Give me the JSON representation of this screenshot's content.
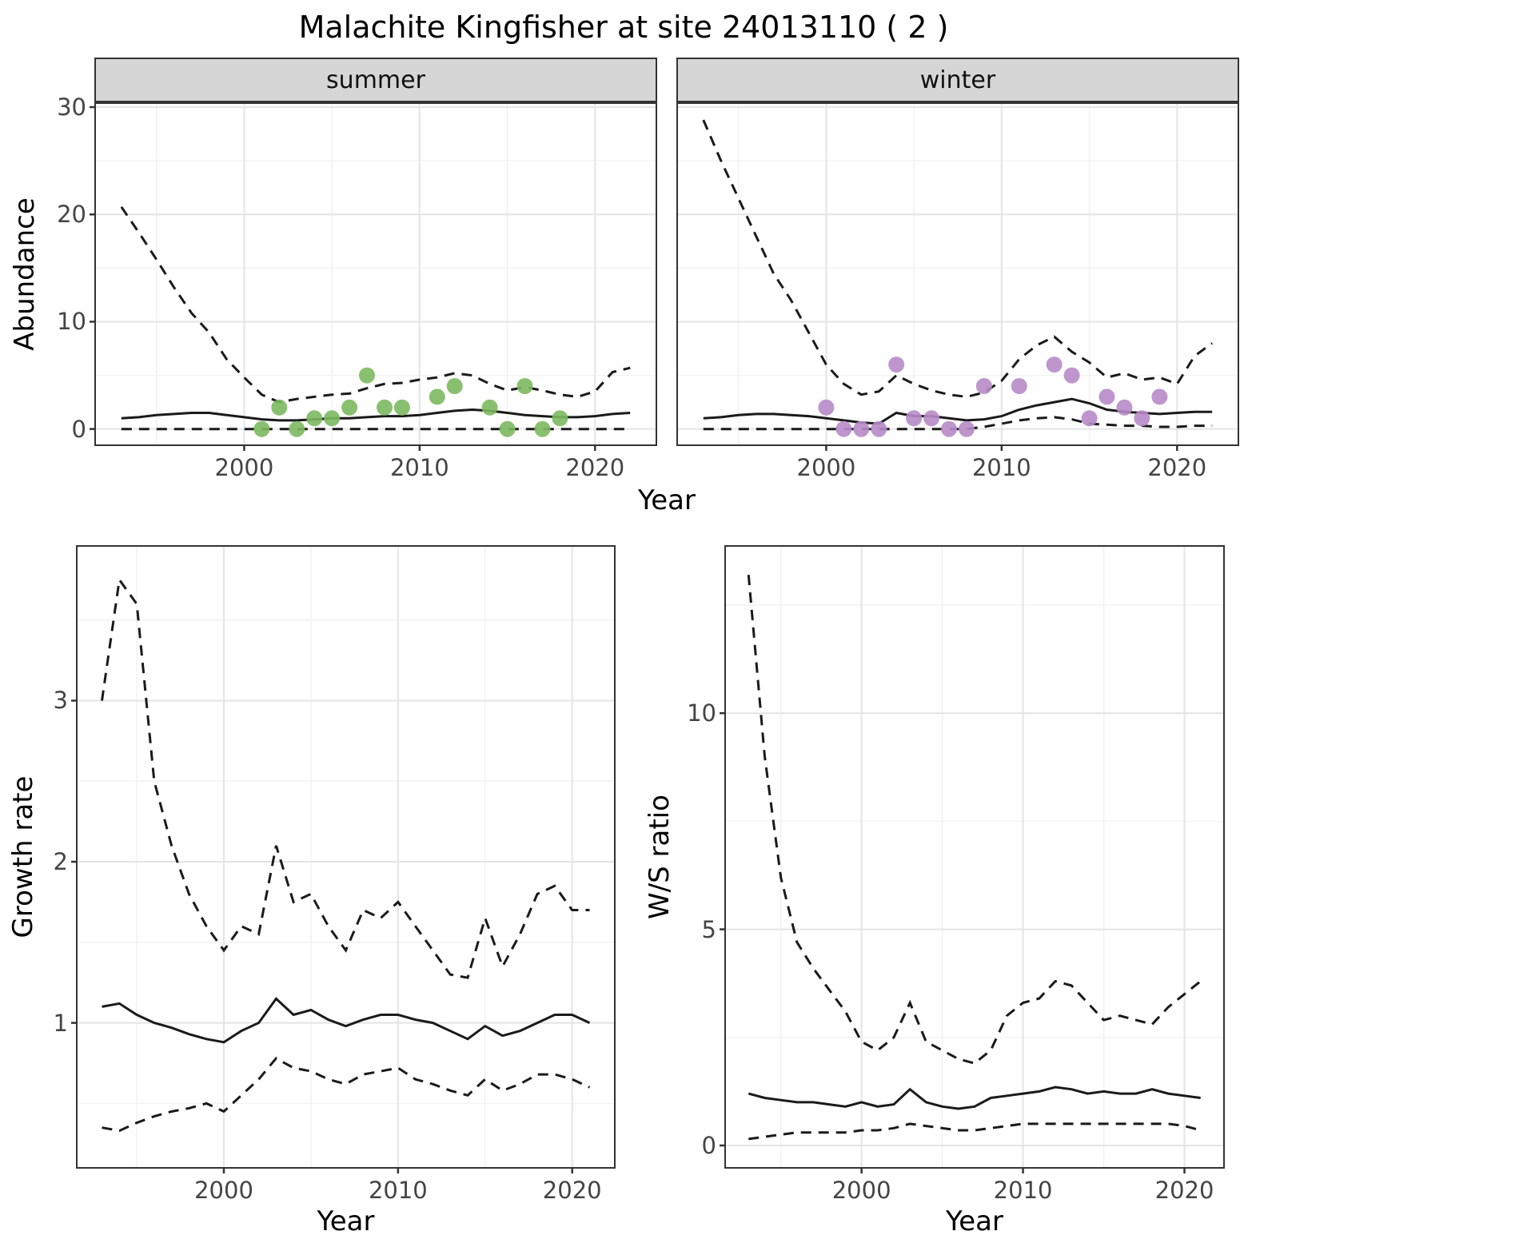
{
  "title": "Malachite Kingfisher at site 24013110 ( 2 )",
  "axes": {
    "year": "Year",
    "abundance": "Abundance",
    "growth_rate": "Growth rate",
    "ws_ratio": "W/S ratio"
  },
  "facets": [
    "summer",
    "winter"
  ],
  "colors": {
    "line": "#1a1a1a",
    "summer_points": "#7cb95f",
    "winter_points": "#b78bc8",
    "strip_bg": "#d6d6d6",
    "grid_major": "#e4e4e4",
    "grid_minor": "#f2f2f2",
    "tick_text": "#444444"
  },
  "chart_data": [
    {
      "id": "abundance-summer",
      "type": "line",
      "facet": "summer",
      "title": "",
      "xlabel": "Year",
      "ylabel": "Abundance",
      "xlim": [
        1991.55,
        2023.45
      ],
      "ylim": [
        -1.44,
        30.3
      ],
      "xticks": [
        2000,
        2010,
        2020
      ],
      "yticks": [
        0,
        10,
        20,
        30
      ],
      "xminor": [
        1995,
        2005,
        2015
      ],
      "yminor": [
        5,
        15,
        25
      ],
      "grid": true,
      "show_yticklabels": true,
      "x": [
        1993,
        1994,
        1995,
        1996,
        1997,
        1998,
        1999,
        2000,
        2001,
        2002,
        2003,
        2004,
        2005,
        2006,
        2007,
        2008,
        2009,
        2010,
        2011,
        2012,
        2013,
        2014,
        2015,
        2016,
        2017,
        2018,
        2019,
        2020,
        2021,
        2022
      ],
      "series": [
        {
          "name": "upper-ci",
          "style": "dashed",
          "values": [
            20.7,
            18.3,
            15.8,
            13.2,
            10.8,
            9.0,
            6.5,
            4.8,
            3.2,
            2.5,
            2.8,
            3.0,
            3.2,
            3.3,
            3.8,
            4.2,
            4.3,
            4.6,
            4.8,
            5.2,
            5.0,
            4.2,
            3.6,
            3.9,
            3.6,
            3.2,
            3.0,
            3.5,
            5.3,
            5.7
          ]
        },
        {
          "name": "mean",
          "style": "solid",
          "values": [
            1.0,
            1.1,
            1.3,
            1.4,
            1.5,
            1.5,
            1.3,
            1.1,
            0.9,
            0.8,
            0.8,
            0.9,
            1.0,
            1.0,
            1.1,
            1.2,
            1.2,
            1.3,
            1.5,
            1.7,
            1.8,
            1.7,
            1.5,
            1.3,
            1.2,
            1.1,
            1.1,
            1.2,
            1.4,
            1.5
          ]
        },
        {
          "name": "lower-ci",
          "style": "dashed",
          "values": [
            0,
            0,
            0,
            0,
            0,
            0,
            0,
            0,
            0,
            0,
            0,
            0,
            0,
            0,
            0,
            0,
            0,
            0,
            0,
            0,
            0,
            0,
            0,
            0,
            0,
            0,
            0,
            0,
            0,
            0
          ]
        }
      ],
      "points": {
        "name": "observed-counts",
        "color": "#7cb95f",
        "x": [
          2001,
          2002,
          2003,
          2004,
          2005,
          2006,
          2007,
          2008,
          2009,
          2011,
          2012,
          2014,
          2015,
          2016,
          2017,
          2018
        ],
        "y": [
          0,
          2,
          0,
          1,
          1,
          2,
          5,
          2,
          2,
          3,
          4,
          2,
          0,
          4,
          0,
          1
        ]
      }
    },
    {
      "id": "abundance-winter",
      "type": "line",
      "facet": "winter",
      "title": "",
      "xlabel": "Year",
      "ylabel": "Abundance",
      "xlim": [
        1991.55,
        2023.45
      ],
      "ylim": [
        -1.44,
        30.3
      ],
      "xticks": [
        2000,
        2010,
        2020
      ],
      "yticks": [
        0,
        10,
        20,
        30
      ],
      "xminor": [
        1995,
        2005,
        2015
      ],
      "yminor": [
        5,
        15,
        25
      ],
      "grid": true,
      "show_yticklabels": false,
      "x": [
        1993,
        1994,
        1995,
        1996,
        1997,
        1998,
        1999,
        2000,
        2001,
        2002,
        2003,
        2004,
        2005,
        2006,
        2007,
        2008,
        2009,
        2010,
        2011,
        2012,
        2013,
        2014,
        2015,
        2016,
        2017,
        2018,
        2019,
        2020,
        2021,
        2022
      ],
      "series": [
        {
          "name": "upper-ci",
          "style": "dashed",
          "values": [
            28.8,
            25.0,
            21.5,
            18.0,
            14.5,
            12.0,
            9.0,
            6.0,
            4.2,
            3.2,
            3.5,
            5.0,
            4.2,
            3.6,
            3.2,
            3.0,
            3.4,
            4.5,
            6.5,
            7.8,
            8.6,
            7.2,
            6.2,
            4.8,
            5.2,
            4.6,
            4.8,
            4.2,
            6.8,
            8.0
          ]
        },
        {
          "name": "mean",
          "style": "solid",
          "values": [
            1.0,
            1.1,
            1.3,
            1.4,
            1.4,
            1.3,
            1.2,
            1.0,
            0.8,
            0.6,
            0.5,
            1.5,
            1.2,
            1.2,
            1.0,
            0.8,
            0.9,
            1.2,
            1.8,
            2.2,
            2.5,
            2.8,
            2.4,
            1.8,
            1.6,
            1.5,
            1.4,
            1.5,
            1.6,
            1.6
          ]
        },
        {
          "name": "lower-ci",
          "style": "dashed",
          "values": [
            0,
            0,
            0,
            0,
            0,
            0,
            0,
            0,
            0,
            0,
            0,
            0,
            0,
            0,
            0,
            0,
            0.2,
            0.5,
            0.8,
            1.0,
            1.1,
            0.9,
            0.5,
            0.4,
            0.3,
            0.3,
            0.2,
            0.2,
            0.3,
            0.3
          ]
        }
      ],
      "points": {
        "name": "observed-counts",
        "color": "#b78bc8",
        "x": [
          2000,
          2001,
          2002,
          2003,
          2004,
          2005,
          2006,
          2007,
          2008,
          2009,
          2011,
          2013,
          2014,
          2015,
          2016,
          2017,
          2018,
          2019
        ],
        "y": [
          2,
          0,
          0,
          0,
          6,
          1,
          1,
          0,
          0,
          4,
          4,
          6,
          5,
          1,
          3,
          2,
          1,
          3
        ]
      }
    },
    {
      "id": "growth-rate",
      "type": "line",
      "facet": "",
      "title": "",
      "xlabel": "Year",
      "ylabel": "Growth rate",
      "xlim": [
        1991.6,
        2022.4
      ],
      "ylim": [
        0.105,
        3.955
      ],
      "xticks": [
        2000,
        2010,
        2020
      ],
      "yticks": [
        1,
        2,
        3
      ],
      "xminor": [
        1995,
        2005,
        2015
      ],
      "yminor": [
        0.5,
        1.5,
        2.5,
        3.5
      ],
      "grid": true,
      "show_yticklabels": true,
      "x": [
        1993,
        1994,
        1995,
        1996,
        1997,
        1998,
        1999,
        2000,
        2001,
        2002,
        2003,
        2004,
        2005,
        2006,
        2007,
        2008,
        2009,
        2010,
        2011,
        2012,
        2013,
        2014,
        2015,
        2016,
        2017,
        2018,
        2019,
        2020,
        2021
      ],
      "series": [
        {
          "name": "upper-ci",
          "style": "dashed",
          "values": [
            3.0,
            3.75,
            3.6,
            2.5,
            2.1,
            1.8,
            1.6,
            1.45,
            1.6,
            1.55,
            2.1,
            1.75,
            1.8,
            1.6,
            1.45,
            1.7,
            1.65,
            1.75,
            1.6,
            1.45,
            1.3,
            1.28,
            1.65,
            1.35,
            1.55,
            1.8,
            1.85,
            1.7,
            1.7
          ]
        },
        {
          "name": "mean",
          "style": "solid",
          "values": [
            1.1,
            1.12,
            1.05,
            1.0,
            0.97,
            0.93,
            0.9,
            0.88,
            0.95,
            1.0,
            1.15,
            1.05,
            1.08,
            1.02,
            0.98,
            1.02,
            1.05,
            1.05,
            1.02,
            1.0,
            0.95,
            0.9,
            0.98,
            0.92,
            0.95,
            1.0,
            1.05,
            1.05,
            1.0
          ]
        },
        {
          "name": "lower-ci",
          "style": "dashed",
          "values": [
            0.35,
            0.33,
            0.38,
            0.42,
            0.45,
            0.47,
            0.5,
            0.45,
            0.55,
            0.65,
            0.78,
            0.72,
            0.7,
            0.65,
            0.62,
            0.68,
            0.7,
            0.72,
            0.65,
            0.62,
            0.58,
            0.55,
            0.65,
            0.58,
            0.62,
            0.68,
            0.68,
            0.65,
            0.6
          ]
        }
      ]
    },
    {
      "id": "ws-ratio",
      "type": "line",
      "facet": "",
      "title": "",
      "xlabel": "Year",
      "ylabel": "W/S ratio",
      "xlim": [
        1991.6,
        2022.4
      ],
      "ylim": [
        -0.5,
        13.85
      ],
      "xticks": [
        2000,
        2010,
        2020
      ],
      "yticks": [
        0,
        5,
        10
      ],
      "xminor": [
        1995,
        2005,
        2015
      ],
      "yminor": [
        2.5,
        7.5,
        12.5
      ],
      "grid": true,
      "show_yticklabels": true,
      "x": [
        1993,
        1994,
        1995,
        1996,
        1997,
        1998,
        1999,
        2000,
        2001,
        2002,
        2003,
        2004,
        2005,
        2006,
        2007,
        2008,
        2009,
        2010,
        2011,
        2012,
        2013,
        2014,
        2015,
        2016,
        2017,
        2018,
        2019,
        2020,
        2021
      ],
      "series": [
        {
          "name": "upper-ci",
          "style": "dashed",
          "values": [
            13.2,
            9.0,
            6.2,
            4.7,
            4.1,
            3.6,
            3.1,
            2.4,
            2.2,
            2.5,
            3.3,
            2.4,
            2.2,
            2.0,
            1.9,
            2.2,
            3.0,
            3.3,
            3.4,
            3.8,
            3.7,
            3.3,
            2.9,
            3.0,
            2.9,
            2.8,
            3.2,
            3.5,
            3.8
          ]
        },
        {
          "name": "mean",
          "style": "solid",
          "values": [
            1.2,
            1.1,
            1.05,
            1.0,
            1.0,
            0.95,
            0.9,
            1.0,
            0.9,
            0.95,
            1.3,
            1.0,
            0.9,
            0.85,
            0.9,
            1.1,
            1.15,
            1.2,
            1.25,
            1.35,
            1.3,
            1.2,
            1.25,
            1.2,
            1.2,
            1.3,
            1.2,
            1.15,
            1.1
          ]
        },
        {
          "name": "lower-ci",
          "style": "dashed",
          "values": [
            0.15,
            0.2,
            0.25,
            0.3,
            0.3,
            0.3,
            0.3,
            0.35,
            0.35,
            0.4,
            0.5,
            0.45,
            0.4,
            0.35,
            0.35,
            0.4,
            0.45,
            0.5,
            0.5,
            0.5,
            0.5,
            0.5,
            0.5,
            0.5,
            0.5,
            0.5,
            0.5,
            0.45,
            0.35
          ]
        }
      ]
    }
  ]
}
